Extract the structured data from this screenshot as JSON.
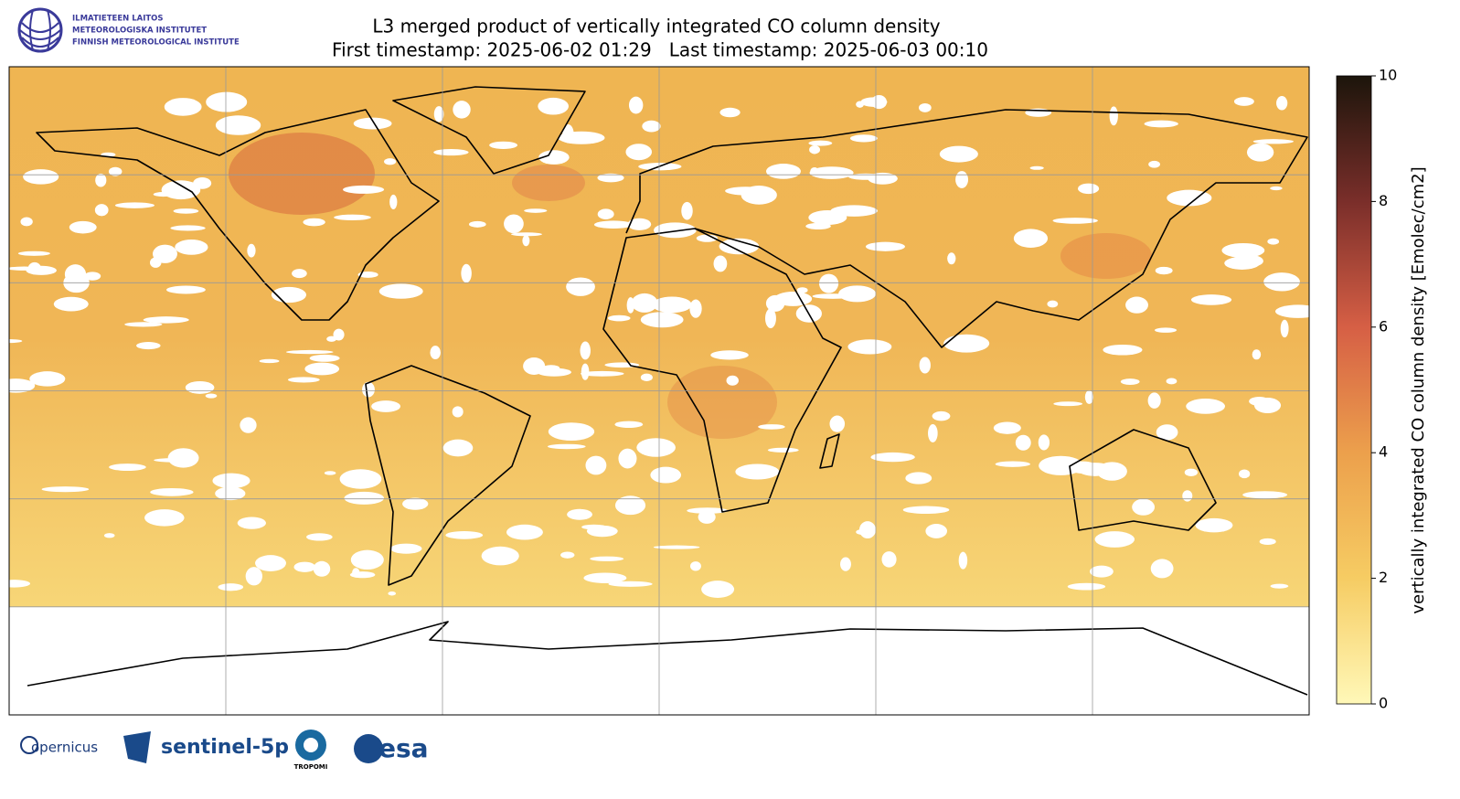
{
  "header": {
    "logo_lines": [
      "ILMATIETEEN LAITOS",
      "METEOROLOGISKA INSTITUTET",
      "FINNISH METEOROLOGICAL INSTITUTE"
    ],
    "title": "L3 merged product of vertically integrated CO column density",
    "subtitle": "First timestamp: 2025-06-02 01:29   Last timestamp: 2025-06-03 00:10"
  },
  "map": {
    "lon_range": [
      -180,
      180
    ],
    "lat_range": [
      -90,
      90
    ],
    "grid_lon": [
      -120,
      -60,
      0,
      60,
      120
    ],
    "grid_lat": [
      -60,
      -30,
      0,
      30,
      60
    ]
  },
  "colorbar": {
    "label": "vertically integrated CO column density [Emolec/cm2]",
    "range": [
      0,
      10
    ],
    "ticks": [
      0,
      2,
      4,
      6,
      8,
      10
    ]
  },
  "footer": {
    "logos": [
      "opernicus",
      "sentinel-5p",
      "TROPOMI",
      "esa"
    ]
  }
}
